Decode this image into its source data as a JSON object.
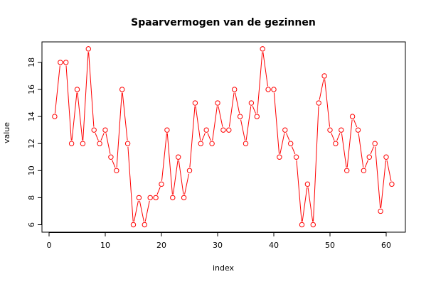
{
  "chart_data": {
    "type": "line",
    "title": "Spaarvermogen van de gezinnen",
    "xlabel": "index",
    "ylabel": "value",
    "xlim": [
      0,
      62
    ],
    "ylim": [
      5.6,
      19.5
    ],
    "xticks": [
      0,
      10,
      20,
      30,
      40,
      50,
      60
    ],
    "yticks": [
      6,
      8,
      10,
      12,
      14,
      16,
      18
    ],
    "line_color": "#ff0000",
    "marker": "open-circle",
    "grid": false,
    "legend": "none",
    "x": [
      1,
      2,
      3,
      4,
      5,
      6,
      7,
      8,
      9,
      10,
      11,
      12,
      13,
      14,
      15,
      16,
      17,
      18,
      19,
      20,
      21,
      22,
      23,
      24,
      25,
      26,
      27,
      28,
      29,
      30,
      31,
      32,
      33,
      34,
      35,
      36,
      37,
      38,
      39,
      40,
      41,
      42,
      43,
      44,
      45,
      46,
      47,
      48,
      49,
      50,
      51,
      52,
      53,
      54,
      55,
      56,
      57,
      58,
      59,
      60,
      61
    ],
    "values": [
      14,
      18,
      18,
      12,
      16,
      12,
      19,
      13,
      12,
      13,
      11,
      10,
      16,
      12,
      6,
      8,
      6,
      8,
      8,
      9,
      13,
      8,
      11,
      8,
      10,
      15,
      12,
      13,
      12,
      15,
      13,
      13,
      16,
      14,
      12,
      15,
      14,
      19,
      16,
      16,
      11,
      13,
      12,
      11,
      6,
      9,
      6,
      15,
      17,
      13,
      12,
      13,
      10,
      14,
      13,
      10,
      11,
      12,
      7,
      11,
      9
    ]
  }
}
